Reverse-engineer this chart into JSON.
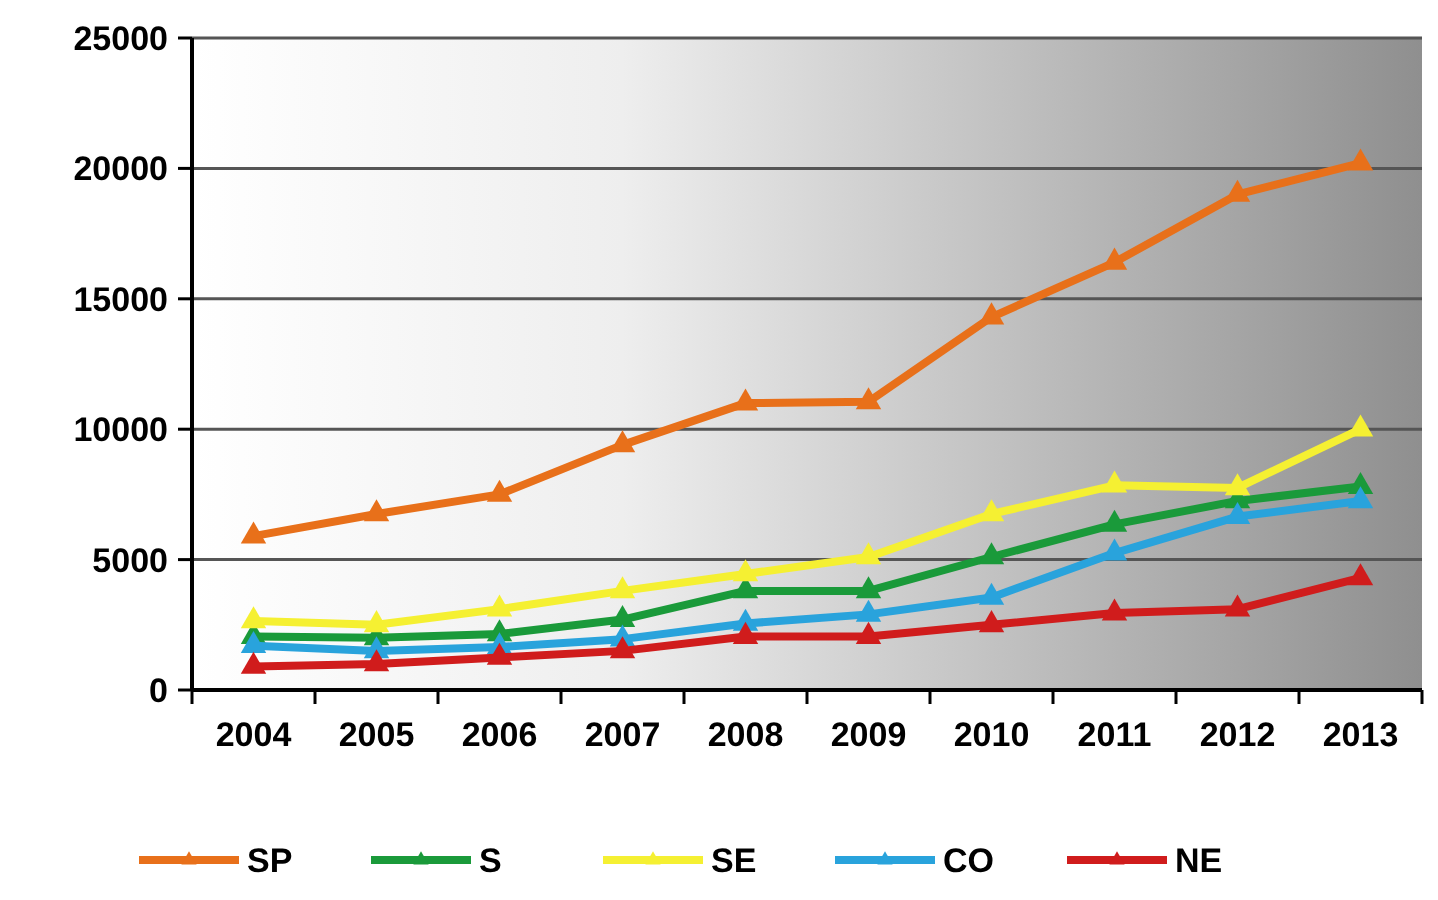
{
  "chart_data": {
    "type": "line",
    "categories": [
      "2004",
      "2005",
      "2006",
      "2007",
      "2008",
      "2009",
      "2010",
      "2011",
      "2012",
      "2013"
    ],
    "series": [
      {
        "name": "SP",
        "color": "#e8701a",
        "values": [
          5900,
          6750,
          7500,
          9400,
          11000,
          11050,
          14300,
          16400,
          19000,
          20200
        ]
      },
      {
        "name": "S",
        "color": "#1a9a3a",
        "values": [
          2050,
          2000,
          2150,
          2700,
          3800,
          3800,
          5100,
          6350,
          7250,
          7800
        ]
      },
      {
        "name": "SE",
        "color": "#f5f032",
        "values": [
          2650,
          2500,
          3100,
          3800,
          4450,
          5100,
          6750,
          7850,
          7750,
          10000
        ]
      },
      {
        "name": "CO",
        "color": "#29a3dc",
        "values": [
          1700,
          1500,
          1650,
          1950,
          2550,
          2900,
          3550,
          5250,
          6650,
          7250
        ]
      },
      {
        "name": "NE",
        "color": "#d01c1c",
        "values": [
          900,
          1000,
          1250,
          1500,
          2050,
          2050,
          2500,
          2950,
          3100,
          4300
        ]
      }
    ],
    "ylim": [
      0,
      25000
    ],
    "yticks": [
      0,
      5000,
      10000,
      15000,
      20000,
      25000
    ],
    "grid": "y",
    "legend": "bottom",
    "marker": "triangle",
    "line_style": "solid"
  }
}
